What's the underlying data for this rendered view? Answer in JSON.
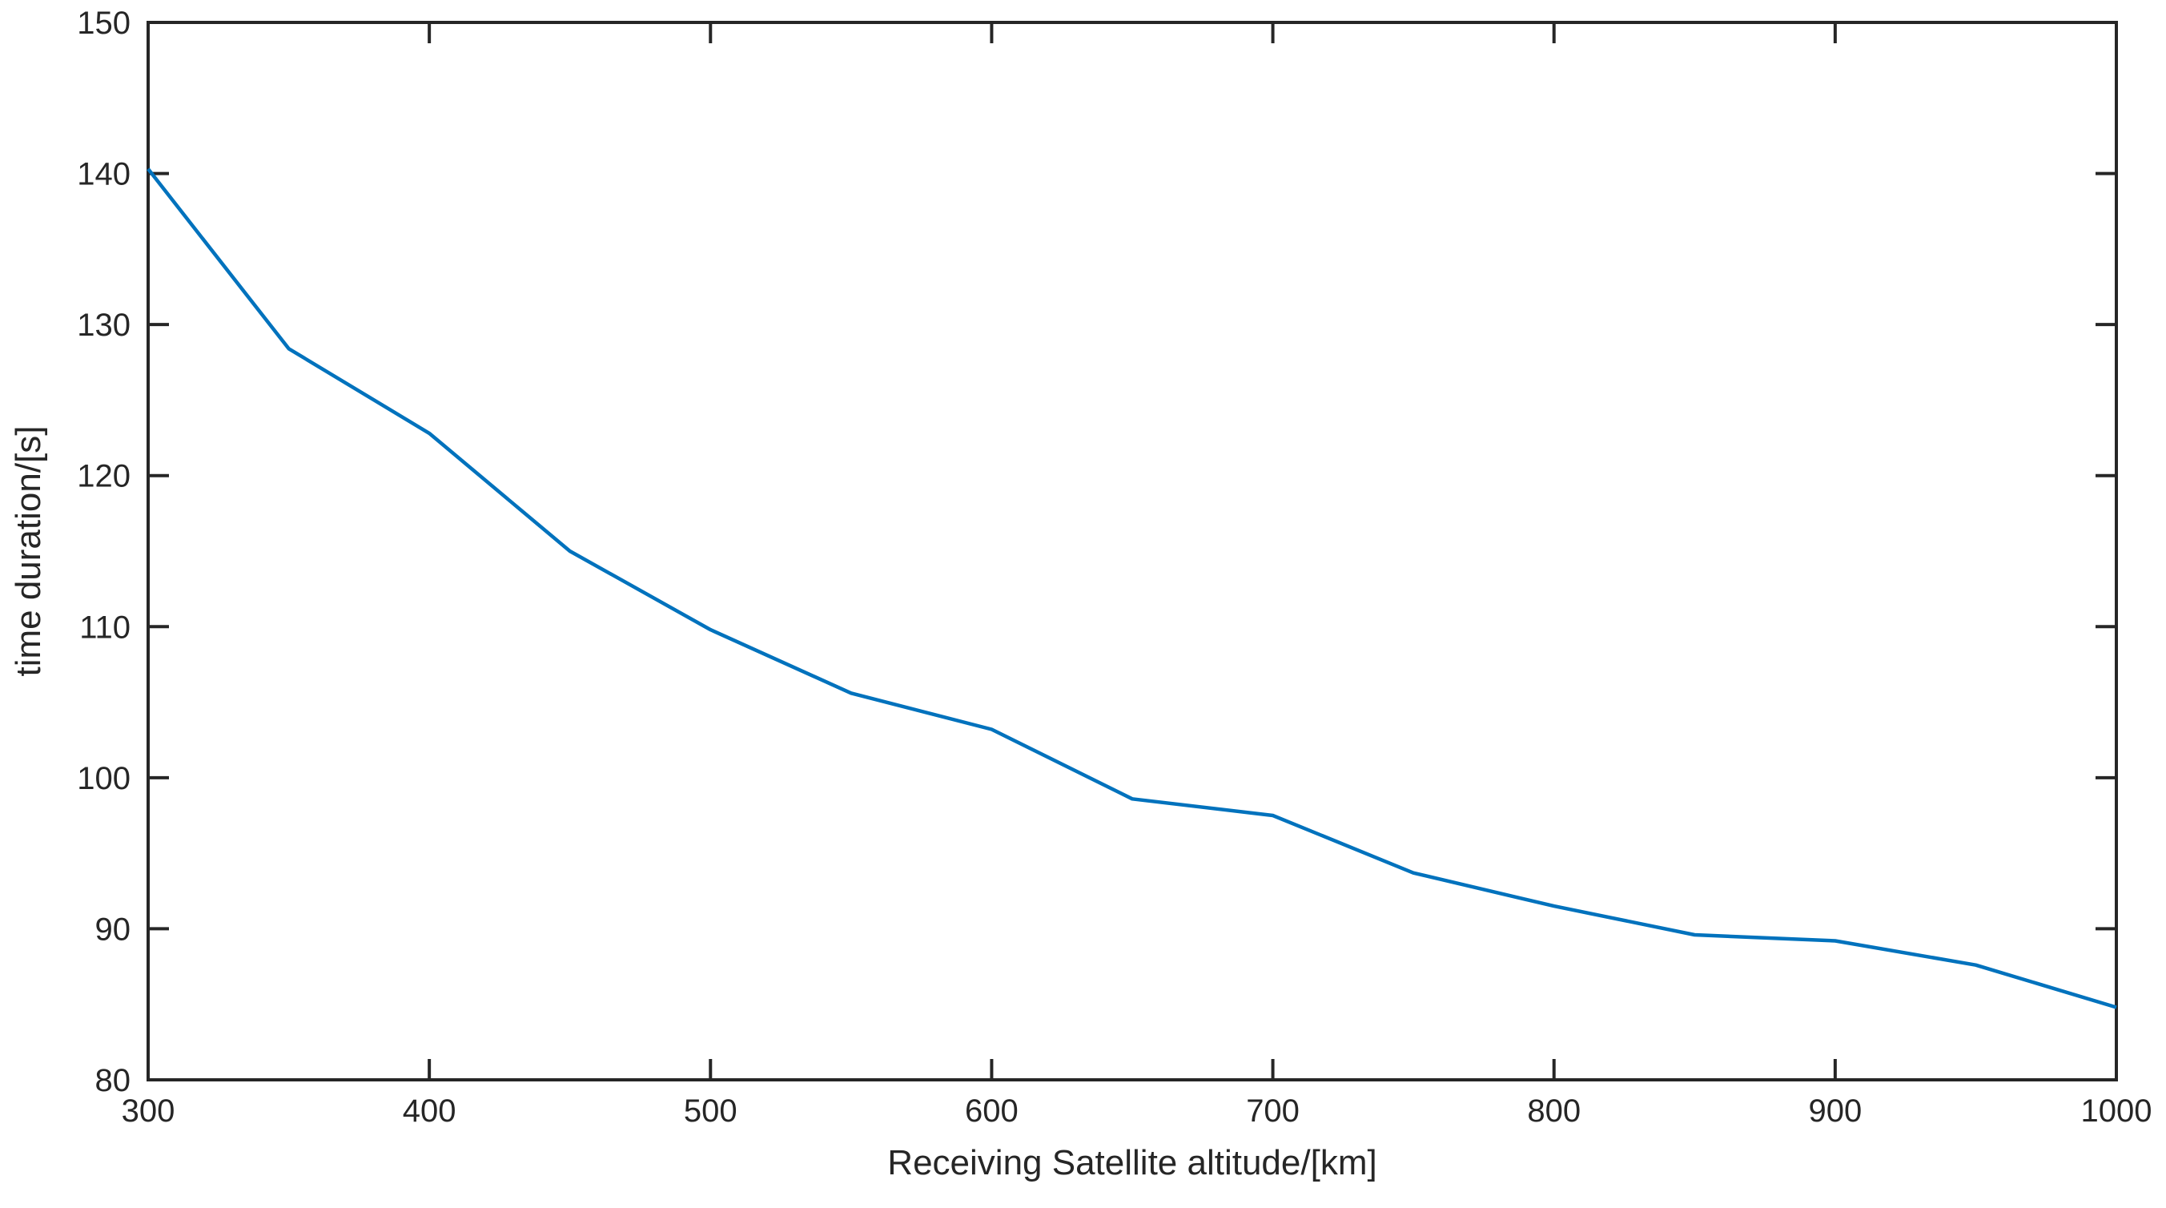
{
  "chart_data": {
    "type": "line",
    "title": "",
    "xlabel": "Receiving Satellite altitude/[km]",
    "ylabel": "time duration/[s]",
    "xlim": [
      300,
      1000
    ],
    "ylim": [
      80,
      150
    ],
    "xticks": [
      300,
      400,
      500,
      600,
      700,
      800,
      900,
      1000
    ],
    "yticks": [
      80,
      90,
      100,
      110,
      120,
      130,
      140,
      150
    ],
    "grid": false,
    "box": true,
    "series": [
      {
        "color": "#0072BD",
        "x": [
          300,
          350,
          400,
          450,
          500,
          550,
          600,
          650,
          700,
          750,
          800,
          850,
          900,
          950,
          1000
        ],
        "y": [
          140.3,
          128.4,
          122.8,
          115.0,
          109.8,
          105.6,
          103.2,
          98.6,
          97.5,
          93.7,
          91.5,
          89.6,
          89.2,
          87.6,
          84.8
        ]
      }
    ]
  }
}
